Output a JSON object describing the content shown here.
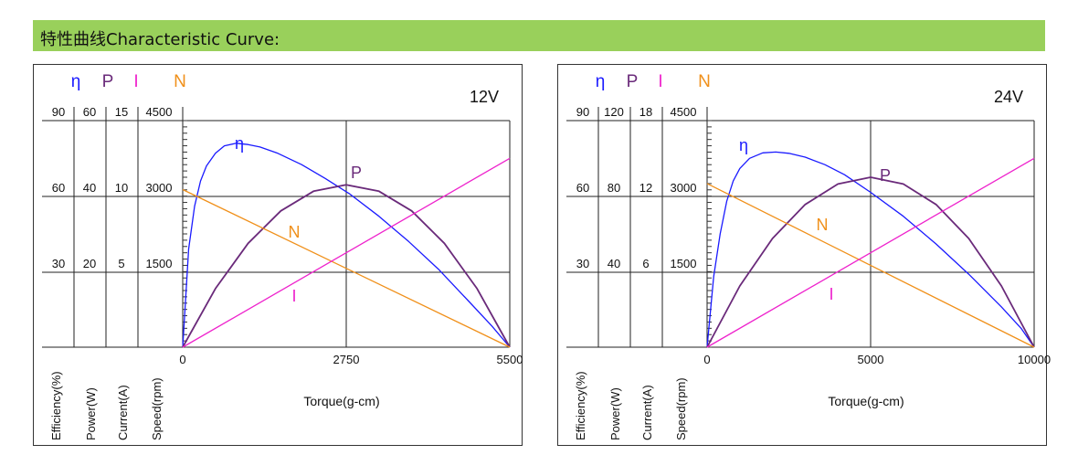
{
  "header": {
    "title": "特性曲线Characteristic Curve:"
  },
  "colors": {
    "header_bg": "#99d05b",
    "efficiency": "#1a1aff",
    "power": "#6a2a7a",
    "current": "#ee22cc",
    "speed": "#f0901a"
  },
  "chart_data": [
    {
      "type": "line",
      "voltage_label": "12V",
      "xlabel": "Torque(g-cm)",
      "xlim": [
        0,
        5500
      ],
      "x_ticks": [
        "0",
        "2750",
        "5500"
      ],
      "axis_symbols": {
        "efficiency": "η",
        "power": "P",
        "current": "I",
        "speed": "N"
      },
      "axis_labels": {
        "efficiency": "Efficiency(%)",
        "power": "Power(W)",
        "current": "Current(A)",
        "speed": "Speed(rpm)"
      },
      "scale_ticks": [
        {
          "efficiency": "90",
          "power": "60",
          "current": "15",
          "speed": "4500"
        },
        {
          "efficiency": "60",
          "power": "40",
          "current": "10",
          "speed": "3000"
        },
        {
          "efficiency": "30",
          "power": "20",
          "current": "5",
          "speed": "1500"
        }
      ],
      "ylim": {
        "efficiency": [
          0,
          90
        ],
        "power": [
          0,
          60
        ],
        "current": [
          0,
          15
        ],
        "speed": [
          0,
          4500
        ]
      },
      "series": [
        {
          "name": "η",
          "axis": "efficiency",
          "x": [
            0,
            100,
            200,
            300,
            400,
            550,
            700,
            900,
            1100,
            1300,
            1600,
            2000,
            2400,
            2800,
            3300,
            3800,
            4300,
            4800,
            5200,
            5500
          ],
          "values": [
            0,
            39,
            56,
            66,
            72,
            77,
            80,
            81,
            80.5,
            79.5,
            77,
            72.5,
            67,
            61,
            52,
            42,
            31,
            18.5,
            8.4,
            0
          ]
        },
        {
          "name": "P",
          "axis": "power",
          "x": [
            0,
            550,
            1100,
            1650,
            2200,
            2750,
            3300,
            3850,
            4400,
            4950,
            5500
          ],
          "values": [
            0,
            15.5,
            27.5,
            36.1,
            41.3,
            43,
            41.3,
            36.1,
            27.5,
            15.5,
            0
          ]
        },
        {
          "name": "N",
          "axis": "speed",
          "x": [
            0,
            5500
          ],
          "values": [
            3130,
            0
          ]
        },
        {
          "name": "I",
          "axis": "current",
          "x": [
            0,
            5500
          ],
          "values": [
            0,
            12.5
          ]
        }
      ]
    },
    {
      "type": "line",
      "voltage_label": "24V",
      "xlabel": "Torque(g-cm)",
      "xlim": [
        0,
        10000
      ],
      "x_ticks": [
        "0",
        "5000",
        "10000"
      ],
      "axis_symbols": {
        "efficiency": "η",
        "power": "P",
        "current": "I",
        "speed": "N"
      },
      "axis_labels": {
        "efficiency": "Efficiency(%)",
        "power": "Power(W)",
        "current": "Current(A)",
        "speed": "Speed(rpm)"
      },
      "scale_ticks": [
        {
          "efficiency": "90",
          "power": "120",
          "current": "18",
          "speed": "4500"
        },
        {
          "efficiency": "60",
          "power": "80",
          "current": "12",
          "speed": "3000"
        },
        {
          "efficiency": "30",
          "power": "40",
          "current": "6",
          "speed": "1500"
        }
      ],
      "ylim": {
        "efficiency": [
          0,
          90
        ],
        "power": [
          0,
          120
        ],
        "current": [
          0,
          18
        ],
        "speed": [
          0,
          4500
        ]
      },
      "series": [
        {
          "name": "η",
          "axis": "efficiency",
          "x": [
            0,
            200,
            400,
            600,
            800,
            1000,
            1300,
            1700,
            2100,
            2500,
            3000,
            3600,
            4200,
            5000,
            6000,
            7000,
            8000,
            9000,
            9600,
            10000
          ],
          "values": [
            0,
            28,
            45,
            58,
            66,
            71,
            75,
            77.2,
            77.5,
            77,
            75.5,
            72.5,
            68.5,
            61.5,
            52,
            41,
            29,
            16,
            7.5,
            0
          ]
        },
        {
          "name": "P",
          "axis": "power",
          "x": [
            0,
            1000,
            2000,
            3000,
            4000,
            5000,
            6000,
            7000,
            8000,
            9000,
            10000
          ],
          "values": [
            0,
            32.4,
            57.6,
            75.6,
            86.4,
            90,
            86.4,
            75.6,
            57.6,
            32.4,
            0
          ]
        },
        {
          "name": "N",
          "axis": "speed",
          "x": [
            0,
            10000
          ],
          "values": [
            3250,
            0
          ]
        },
        {
          "name": "I",
          "axis": "current",
          "x": [
            0,
            10000
          ],
          "values": [
            0,
            15
          ]
        }
      ]
    }
  ]
}
